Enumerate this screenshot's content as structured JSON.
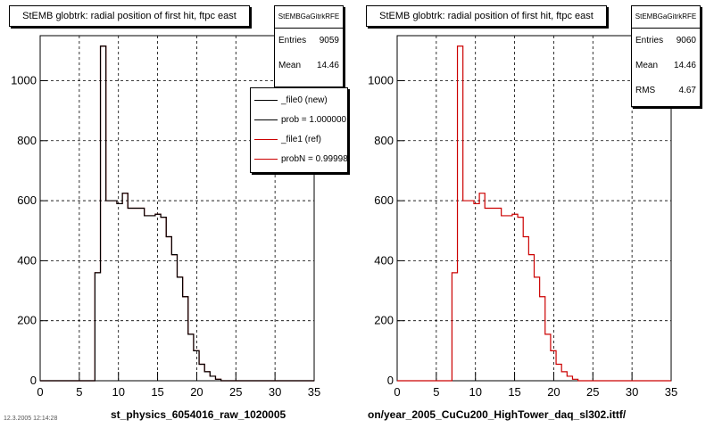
{
  "colors": {
    "ref": "#cc0000",
    "new": "#000000",
    "grid": "#000000"
  },
  "panels": [
    {
      "title": "StEMB globtrk: radial position of first hit, ftpc east",
      "stats": {
        "header": "StEMBGaGitrkRFE",
        "entries_label": "Entries",
        "entries": "9059",
        "mean_label": "Mean",
        "mean": "14.46"
      },
      "legend": {
        "items": [
          {
            "label": "_file0 (new)",
            "color_key": "new"
          },
          {
            "label": "prob = 1.000000",
            "color_key": "new"
          },
          {
            "label": "_file1 (ref)",
            "color_key": "ref"
          },
          {
            "label": "probN = 0.999980",
            "color_key": "ref"
          }
        ]
      },
      "file_label": "st_physics_6054016_raw_1020005"
    },
    {
      "title": "StEMB globtrk: radial position of first hit, ftpc east",
      "stats": {
        "header": "StEMBGaGitrkRFE",
        "entries_label": "Entries",
        "entries": "9060",
        "mean_label": "Mean",
        "mean": "14.46",
        "rms_label": "RMS",
        "rms": "4.67"
      },
      "file_label": "on/year_2005_CuCu200_HighTower_daq_sl302.ittf/"
    }
  ],
  "footer_text": "12.3.2005 12:14:28",
  "chart_data": [
    {
      "type": "histogram",
      "title": "StEMB globtrk: radial position of first hit, ftpc east",
      "xlabel": "",
      "ylabel": "",
      "xlim": [
        0,
        35
      ],
      "ylim": [
        0,
        1150
      ],
      "xticks": [
        0,
        5,
        10,
        15,
        20,
        25,
        30,
        35
      ],
      "yticks": [
        0,
        200,
        400,
        600,
        800,
        1000
      ],
      "grid": true,
      "legend_position": "top-right",
      "bin_width": 0.7,
      "series": [
        {
          "name": "_file1 (ref)",
          "color_key": "ref",
          "values": [
            0,
            0,
            0,
            0,
            0,
            0,
            0,
            0,
            0,
            0,
            360,
            1115,
            600,
            600,
            590,
            625,
            575,
            575,
            575,
            550,
            550,
            555,
            545,
            480,
            420,
            345,
            280,
            155,
            100,
            55,
            30,
            15,
            5,
            0,
            0,
            0,
            0,
            0,
            0,
            0,
            0,
            0,
            0,
            0,
            0,
            0,
            0,
            0,
            0,
            0
          ]
        },
        {
          "name": "_file0 (new)",
          "color_key": "new",
          "values": [
            0,
            0,
            0,
            0,
            0,
            0,
            0,
            0,
            0,
            0,
            360,
            1115,
            600,
            600,
            590,
            625,
            575,
            575,
            575,
            550,
            550,
            555,
            545,
            480,
            420,
            345,
            280,
            155,
            100,
            55,
            30,
            15,
            5,
            0,
            0,
            0,
            0,
            0,
            0,
            0,
            0,
            0,
            0,
            0,
            0,
            0,
            0,
            0,
            0,
            0
          ]
        }
      ]
    },
    {
      "type": "histogram",
      "title": "StEMB globtrk: radial position of first hit, ftpc east",
      "xlabel": "",
      "ylabel": "",
      "xlim": [
        0,
        35
      ],
      "ylim": [
        0,
        1150
      ],
      "xticks": [
        0,
        5,
        10,
        15,
        20,
        25,
        30,
        35
      ],
      "yticks": [
        0,
        200,
        400,
        600,
        800,
        1000
      ],
      "grid": true,
      "bin_width": 0.7,
      "series": [
        {
          "name": "",
          "color_key": "ref",
          "values": [
            0,
            0,
            0,
            0,
            0,
            0,
            0,
            0,
            0,
            0,
            360,
            1115,
            600,
            600,
            590,
            625,
            575,
            575,
            575,
            550,
            550,
            555,
            545,
            480,
            420,
            345,
            280,
            155,
            100,
            55,
            30,
            15,
            5,
            0,
            0,
            0,
            0,
            0,
            0,
            0,
            0,
            0,
            0,
            0,
            0,
            0,
            0,
            0,
            0,
            0
          ]
        }
      ]
    }
  ]
}
